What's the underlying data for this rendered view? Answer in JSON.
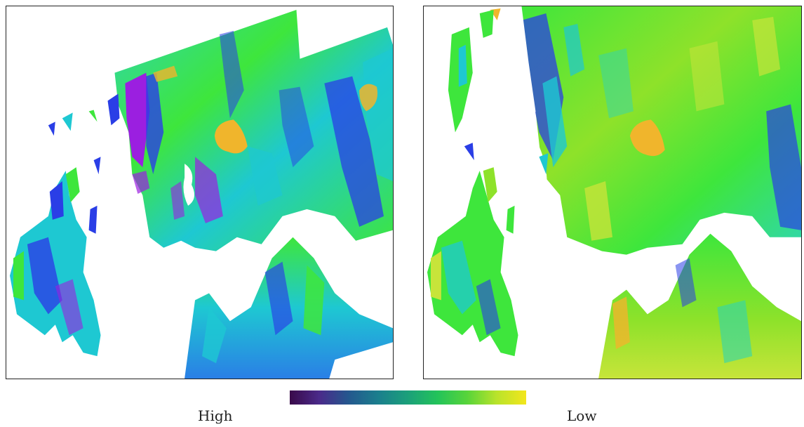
{
  "panels": [
    {
      "id": "left"
    },
    {
      "id": "right"
    }
  ],
  "legend": {
    "high_label": "High",
    "low_label": "Low",
    "colormap": [
      "#3a0a4a",
      "#4a2a8a",
      "#24588e",
      "#1b7f8d",
      "#1ba07a",
      "#23c35a",
      "#57d43a",
      "#b9e32b",
      "#f3e61c"
    ]
  },
  "palette": {
    "violet": "#9b1fe0",
    "blue": "#2a3ee6",
    "cyan": "#1ec8d2",
    "teal": "#22c8a0",
    "green": "#3ee63c",
    "lime": "#8ee22a",
    "yellowgreen": "#c7e43a",
    "orange": "#f0b52c"
  }
}
